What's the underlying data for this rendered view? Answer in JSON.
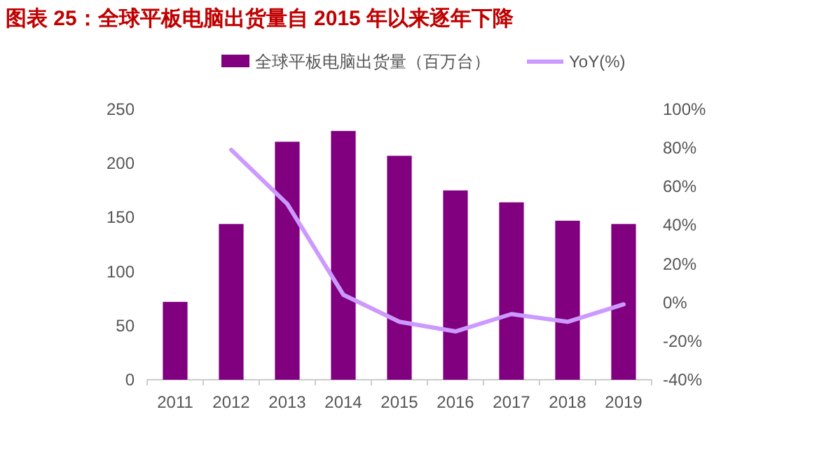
{
  "chart_data": {
    "type": "bar",
    "title": "图表 25：全球平板电脑出货量自 2015 年以来逐年下降",
    "categories": [
      "2011",
      "2012",
      "2013",
      "2014",
      "2015",
      "2016",
      "2017",
      "2018",
      "2019"
    ],
    "series": [
      {
        "name": "全球平板电脑出货量（百万台）",
        "color": "#800080",
        "values": [
          72,
          144,
          220,
          230,
          207,
          175,
          164,
          147,
          144
        ]
      },
      {
        "name": "YoY(%)",
        "type": "line",
        "axis": "y2",
        "color": "#cc99ff",
        "values": [
          null,
          79,
          51,
          4,
          -10,
          -15,
          -6,
          -10,
          -1
        ]
      }
    ],
    "ylim": [
      0,
      250
    ],
    "yticks": [
      0,
      50,
      100,
      150,
      200,
      250
    ],
    "y2lim": [
      -40,
      100
    ],
    "y2ticks": [
      {
        "value": -40,
        "label": "-40%"
      },
      {
        "value": -20,
        "label": "-20%"
      },
      {
        "value": 0,
        "label": "0%"
      },
      {
        "value": 20,
        "label": "20%"
      },
      {
        "value": 40,
        "label": "40%"
      },
      {
        "value": 60,
        "label": "60%"
      },
      {
        "value": 80,
        "label": "80%"
      },
      {
        "value": 100,
        "label": "100%"
      }
    ],
    "grid": false,
    "legend": "top",
    "marker": "none",
    "line_style": "solid"
  }
}
